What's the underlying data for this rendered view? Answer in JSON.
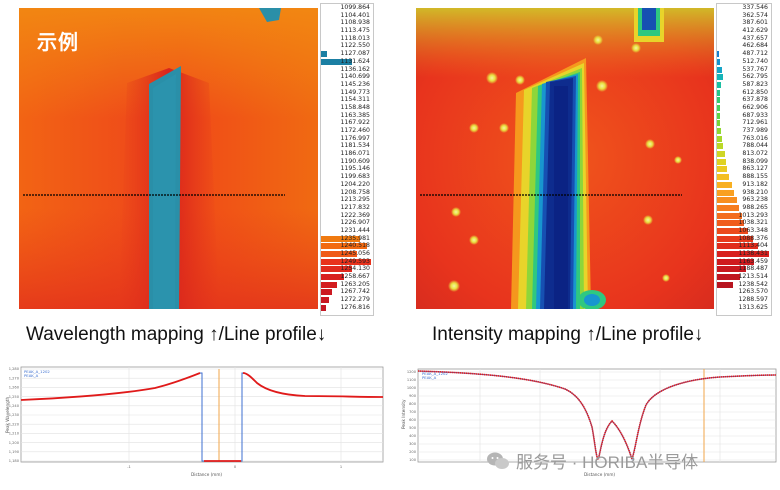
{
  "left_panel": {
    "tag": "示例",
    "caption": "Wavelength mapping ↑/Line profile↓",
    "legend_values": [
      "1099.864",
      "1104.401",
      "1108.938",
      "1113.475",
      "1118.013",
      "1122.550",
      "1127.087",
      "1131.624",
      "1136.162",
      "1140.699",
      "1145.236",
      "1149.773",
      "1154.311",
      "1158.848",
      "1163.385",
      "1167.922",
      "1172.460",
      "1176.997",
      "1181.534",
      "1186.071",
      "1190.609",
      "1195.146",
      "1199.683",
      "1204.220",
      "1208.758",
      "1213.295",
      "1217.832",
      "1222.369",
      "1226.907",
      "1231.444",
      "1235.981",
      "1240.518",
      "1245.056",
      "1249.593",
      "1254.130",
      "1258.667",
      "1263.205",
      "1267.742",
      "1272.279",
      "1276.816"
    ],
    "legend_bars": [
      0,
      0,
      0,
      0,
      0,
      0,
      0.12,
      0.62,
      0,
      0,
      0,
      0,
      0,
      0,
      0,
      0,
      0,
      0,
      0,
      0,
      0,
      0,
      0,
      0,
      0,
      0,
      0,
      0,
      0,
      0,
      0.78,
      0.92,
      0.72,
      1.0,
      0.62,
      0.45,
      0.32,
      0.22,
      0.15,
      0.1
    ],
    "legend_bar_colors": [
      "#2a8fb4",
      "#2a8fb4",
      "#2a8fb4",
      "#2a8fb4",
      "#2a8fb4",
      "#2a8fb4",
      "#1b7fa3",
      "#1b7fa3",
      "#2a8fb4",
      "#2a8fb4",
      "#2a8fb4",
      "#2a8fb4",
      "#2a8fb4",
      "#2a8fb4",
      "#2a8fb4",
      "#2a8fb4",
      "#2a8fb4",
      "#2a8fb4",
      "#2a8fb4",
      "#2a8fb4",
      "#2a8fb4",
      "#2a8fb4",
      "#2a8fb4",
      "#2a8fb4",
      "#2a8fb4",
      "#2a8fb4",
      "#2a8fb4",
      "#2a8fb4",
      "#2a8fb4",
      "#2a8fb4",
      "#f07a10",
      "#f26a12",
      "#f05a18",
      "#e8321c",
      "#e02a1e",
      "#d8201f",
      "#d31c1f",
      "#cc1a22",
      "#c81822",
      "#c41622"
    ],
    "plot": {
      "legend_lines": [
        "PEAK_A_1202",
        "PEAK_A"
      ],
      "xlabel": "Distance (mm)",
      "ylabel": "Peak Wavelength",
      "x_ticks": [
        "-1",
        "0",
        "1"
      ],
      "y_ticks": [
        "1,280",
        "1,270",
        "1,260",
        "1,250",
        "1,240",
        "1,230",
        "1,220",
        "1,210",
        "1,200",
        "1,190",
        "1,180"
      ]
    }
  },
  "right_panel": {
    "caption": "Intensity mapping ↑/Line profile↓",
    "legend_values": [
      "337.546",
      "362.574",
      "387.601",
      "412.629",
      "437.657",
      "462.684",
      "487.712",
      "512.740",
      "537.767",
      "562.795",
      "587.823",
      "612.850",
      "637.878",
      "662.906",
      "687.933",
      "712.961",
      "737.989",
      "763.016",
      "788.044",
      "813.072",
      "838.099",
      "863.127",
      "888.155",
      "913.182",
      "938.210",
      "963.238",
      "988.265",
      "1013.293",
      "1038.321",
      "1063.348",
      "1088.376",
      "1113.404",
      "1138.431",
      "1163.459",
      "1188.487",
      "1213.514",
      "1238.542",
      "1263.570",
      "1288.597",
      "1313.625"
    ],
    "legend_bars": [
      0,
      0,
      0,
      0,
      0,
      0,
      0.03,
      0.05,
      0.1,
      0.12,
      0.08,
      0.06,
      0.05,
      0.05,
      0.05,
      0.06,
      0.08,
      0.1,
      0.12,
      0.15,
      0.18,
      0.2,
      0.24,
      0.28,
      0.32,
      0.38,
      0.42,
      0.48,
      0.52,
      0.6,
      0.7,
      0.78,
      1.0,
      0.72,
      0.55,
      0.45,
      0.3,
      0,
      0,
      0
    ],
    "legend_bar_colors": [
      "#0f2d8f",
      "#11389a",
      "#1445a8",
      "#1653b4",
      "#1a62bf",
      "#1b6fc8",
      "#1a80cf",
      "#1892cf",
      "#16a4c8",
      "#16b4b8",
      "#1bbfa2",
      "#25c78a",
      "#35cc70",
      "#49d05a",
      "#60d447",
      "#78d63a",
      "#8fd832",
      "#a6d92c",
      "#bbd828",
      "#ced625",
      "#dfd223",
      "#ecca22",
      "#f4bf22",
      "#f8b022",
      "#f9a021",
      "#f88f20",
      "#f67d1f",
      "#f36c1e",
      "#f05b1d",
      "#ec4a1d",
      "#e73a1d",
      "#e02c1d",
      "#d8201d",
      "#cf1a1e",
      "#c8181f",
      "#c01620",
      "#b81520",
      "#b01420",
      "#a81320",
      "#a01220"
    ],
    "plot": {
      "legend_lines": [
        "PEAK_A_1202",
        "PEAK_A"
      ],
      "xlabel": "Distance (mm)",
      "ylabel": "Peak Intensity",
      "y_ticks": [
        "1200",
        "1100",
        "1000",
        "900",
        "800",
        "700",
        "600",
        "500",
        "400",
        "300",
        "200",
        "100"
      ]
    }
  },
  "watermark": {
    "text": "服务号 · HORIBA半导体"
  }
}
